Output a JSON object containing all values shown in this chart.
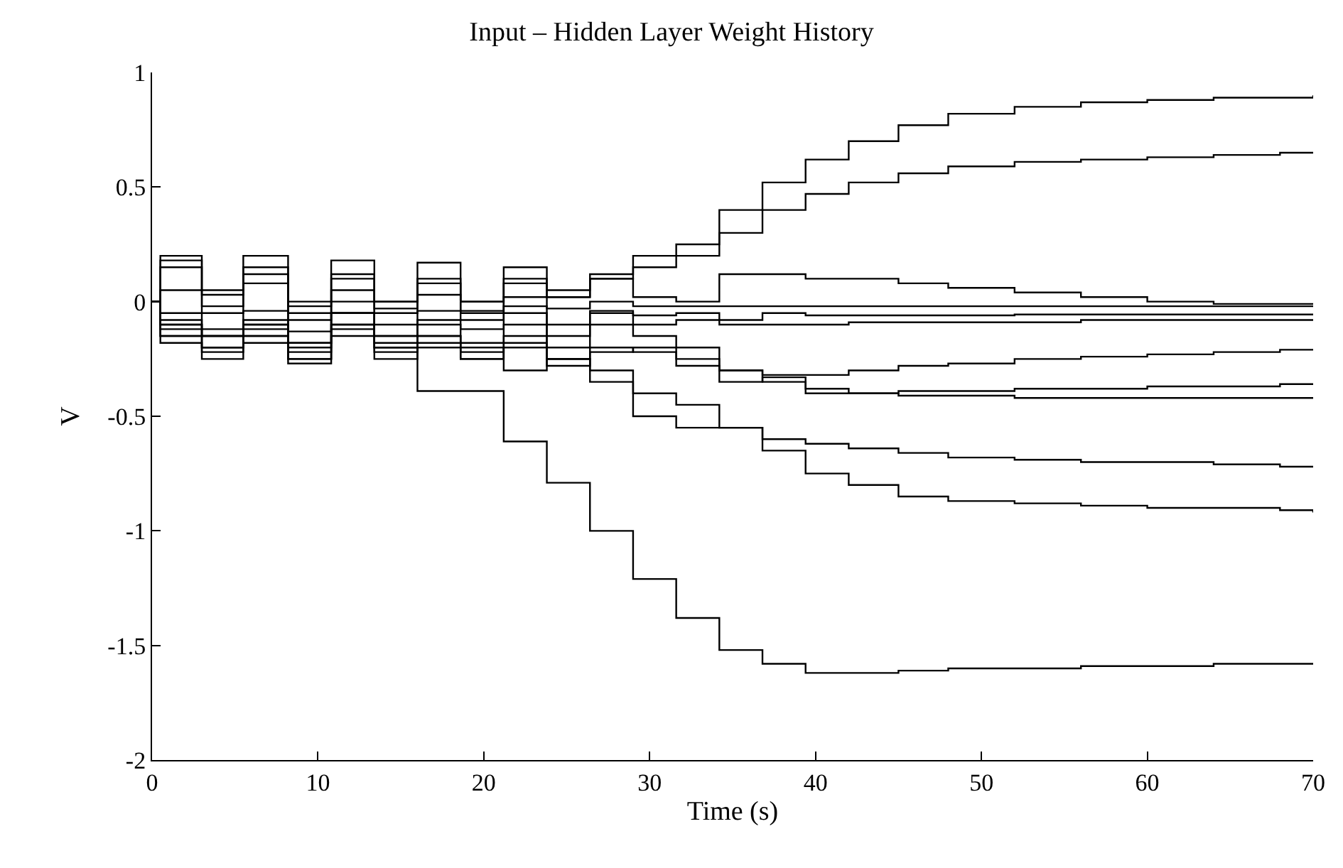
{
  "chart_data": {
    "type": "step",
    "title": "Input – Hidden Layer Weight History",
    "xlabel": "Time (s)",
    "ylabel": "V",
    "x": [
      0,
      0.5,
      3,
      5.5,
      8.2,
      10.8,
      13.4,
      16,
      18.6,
      21.2,
      23.8,
      26.4,
      29,
      31.6,
      34.2,
      36.8,
      39.4,
      42,
      45,
      48,
      52,
      56,
      60,
      64,
      68,
      70
    ],
    "xlim": [
      0,
      70
    ],
    "xticks": [
      0,
      10,
      20,
      30,
      40,
      50,
      60,
      70
    ],
    "ylim": [
      -2,
      1
    ],
    "yticks": [
      -2,
      -1.5,
      -1,
      -0.5,
      0,
      0.5,
      1
    ],
    "marker": "none",
    "line_style": "solid",
    "series": [
      {
        "color": "#000000",
        "values": [
          0,
          0.2,
          0.05,
          0.2,
          0.0,
          0.18,
          0.0,
          0.17,
          0.0,
          0.15,
          0.02,
          0.12,
          0.2,
          0.25,
          0.4,
          0.52,
          0.62,
          0.7,
          0.77,
          0.82,
          0.85,
          0.87,
          0.88,
          0.89,
          0.89,
          0.9
        ]
      },
      {
        "color": "#000000",
        "values": [
          0,
          0.18,
          0.03,
          0.15,
          -0.02,
          0.12,
          -0.03,
          0.1,
          0.0,
          0.08,
          0.02,
          0.1,
          0.15,
          0.2,
          0.3,
          0.4,
          0.47,
          0.52,
          0.56,
          0.59,
          0.61,
          0.62,
          0.63,
          0.64,
          0.65,
          0.65
        ]
      },
      {
        "color": "#000000",
        "values": [
          0,
          0.15,
          -0.02,
          0.12,
          -0.05,
          0.1,
          0.0,
          0.08,
          -0.05,
          0.1,
          0.05,
          0.1,
          0.02,
          0.0,
          0.12,
          0.12,
          0.1,
          0.1,
          0.08,
          0.06,
          0.04,
          0.02,
          0.0,
          -0.01,
          -0.01,
          -0.01
        ]
      },
      {
        "color": "#000000",
        "values": [
          0,
          0.05,
          -0.05,
          0.08,
          -0.08,
          0.05,
          -0.05,
          0.03,
          -0.04,
          0.02,
          -0.03,
          0.0,
          -0.02,
          -0.02,
          -0.02,
          -0.02,
          -0.02,
          -0.02,
          -0.02,
          -0.02,
          -0.02,
          -0.02,
          -0.02,
          -0.02,
          -0.02,
          -0.02
        ]
      },
      {
        "color": "#000000",
        "values": [
          0,
          -0.05,
          -0.12,
          -0.04,
          -0.13,
          0.0,
          -0.1,
          -0.04,
          -0.08,
          -0.02,
          -0.1,
          -0.04,
          -0.06,
          -0.05,
          -0.08,
          -0.05,
          -0.06,
          -0.06,
          -0.06,
          -0.06,
          -0.056,
          -0.056,
          -0.056,
          -0.056,
          -0.056,
          -0.056
        ]
      },
      {
        "color": "#000000",
        "values": [
          0,
          -0.1,
          -0.15,
          -0.1,
          -0.18,
          -0.05,
          -0.15,
          -0.08,
          -0.12,
          -0.05,
          -0.15,
          -0.05,
          -0.1,
          -0.08,
          -0.1,
          -0.1,
          -0.1,
          -0.09,
          -0.09,
          -0.09,
          -0.09,
          -0.08,
          -0.08,
          -0.08,
          -0.08,
          -0.08
        ]
      },
      {
        "color": "#000000",
        "values": [
          0,
          -0.12,
          -0.2,
          -0.12,
          -0.22,
          -0.1,
          -0.2,
          -0.15,
          -0.18,
          -0.1,
          -0.2,
          -0.1,
          -0.15,
          -0.2,
          -0.3,
          -0.32,
          -0.32,
          -0.3,
          -0.28,
          -0.27,
          -0.25,
          -0.24,
          -0.23,
          -0.22,
          -0.21,
          -0.21
        ]
      },
      {
        "color": "#000000",
        "values": [
          0,
          -0.15,
          -0.22,
          -0.15,
          -0.25,
          -0.12,
          -0.22,
          -0.18,
          -0.22,
          -0.15,
          -0.25,
          -0.2,
          -0.22,
          -0.28,
          -0.3,
          -0.35,
          -0.4,
          -0.4,
          -0.39,
          -0.39,
          -0.38,
          -0.38,
          -0.37,
          -0.37,
          -0.36,
          -0.36
        ]
      },
      {
        "color": "#000000",
        "values": [
          0,
          -0.18,
          -0.25,
          -0.18,
          -0.27,
          -0.15,
          -0.25,
          -0.2,
          -0.25,
          -0.18,
          -0.28,
          -0.22,
          -0.2,
          -0.25,
          -0.35,
          -0.33,
          -0.38,
          -0.4,
          -0.41,
          -0.41,
          -0.42,
          -0.42,
          -0.42,
          -0.42,
          -0.42,
          -0.42
        ]
      },
      {
        "color": "#000000",
        "values": [
          0,
          -0.1,
          -0.15,
          -0.1,
          -0.2,
          -0.05,
          -0.15,
          -0.1,
          -0.2,
          -0.3,
          -0.25,
          -0.3,
          -0.4,
          -0.45,
          -0.55,
          -0.6,
          -0.62,
          -0.64,
          -0.66,
          -0.68,
          -0.69,
          -0.7,
          -0.7,
          -0.71,
          -0.72,
          -0.72
        ]
      },
      {
        "color": "#000000",
        "values": [
          0,
          -0.08,
          -0.15,
          -0.08,
          -0.18,
          -0.05,
          -0.18,
          -0.15,
          -0.25,
          -0.2,
          -0.25,
          -0.35,
          -0.5,
          -0.55,
          -0.55,
          -0.65,
          -0.75,
          -0.8,
          -0.85,
          -0.87,
          -0.88,
          -0.89,
          -0.9,
          -0.9,
          -0.91,
          -0.92
        ]
      },
      {
        "color": "#000000",
        "values": [
          0,
          -0.15,
          -0.2,
          -0.15,
          -0.25,
          -0.1,
          -0.2,
          -0.39,
          -0.39,
          -0.61,
          -0.79,
          -1.0,
          -1.21,
          -1.38,
          -1.52,
          -1.58,
          -1.62,
          -1.62,
          -1.61,
          -1.6,
          -1.6,
          -1.59,
          -1.59,
          -1.58,
          -1.58,
          -1.58
        ]
      }
    ]
  }
}
